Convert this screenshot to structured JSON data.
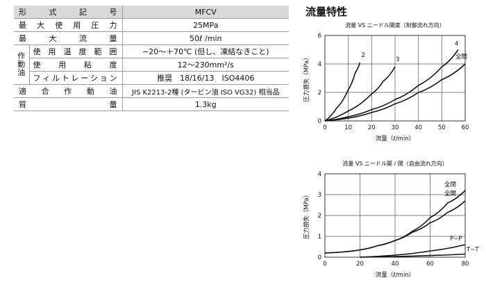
{
  "spec_table": {
    "header": {
      "label": "形式記号",
      "value": "MFCV"
    },
    "rows": [
      {
        "label": "最大使用圧力",
        "value": "25MPa"
      },
      {
        "label": "最大流量",
        "value": "50ℓ /min"
      }
    ],
    "oil_group": {
      "label": "作動油",
      "rows": [
        {
          "label": "使用温度範囲",
          "value": "−20〜＋70℃ (但し、凍結なきこと)"
        },
        {
          "label": "使用粘度",
          "value": "12〜230mm²/s"
        },
        {
          "label": "フィルトレーション",
          "value": "推奨　18/16/13　ISO4406"
        }
      ]
    },
    "rows_after": [
      {
        "label": "適合作動油",
        "value": "JIS K2213-2種 (タービン油 ISO VG32) 相当品"
      },
      {
        "label": "質量",
        "value": "1.3kg"
      }
    ]
  },
  "section_title": "流量特性",
  "chart_data": [
    {
      "type": "line",
      "title": "流量 VS ニードル開度（制御流れ方向）",
      "xlabel": "流量（ℓ/min）",
      "ylabel": "圧力損失（MPa）",
      "xlim": [
        0,
        60
      ],
      "ylim": [
        0,
        6
      ],
      "xticks": [
        0,
        10,
        20,
        30,
        40,
        50,
        60
      ],
      "yticks": [
        0,
        2,
        4,
        6
      ],
      "grid": true,
      "series": [
        {
          "name": "2",
          "x": [
            0,
            5,
            10,
            13,
            15
          ],
          "y": [
            0,
            0.9,
            2.2,
            3.4,
            4.1
          ]
        },
        {
          "name": "3",
          "x": [
            0,
            10,
            20,
            25,
            30
          ],
          "y": [
            0,
            0.7,
            1.9,
            2.8,
            3.8
          ]
        },
        {
          "name": "4",
          "x": [
            0,
            10,
            20,
            30,
            40,
            50,
            57
          ],
          "y": [
            0,
            0.3,
            0.8,
            1.5,
            2.5,
            3.8,
            5.0
          ]
        },
        {
          "name": "全開",
          "x": [
            0,
            10,
            20,
            30,
            40,
            50,
            60
          ],
          "y": [
            0,
            0.2,
            0.6,
            1.2,
            2.0,
            2.9,
            4.0
          ]
        }
      ]
    },
    {
      "type": "line",
      "title": "流量 VS ニードル開 / 閉（自由流れ方向）",
      "xlabel": "流量（ℓ/min）",
      "ylabel": "圧力損失（MPa）",
      "xlim": [
        0,
        80
      ],
      "ylim": [
        0,
        4
      ],
      "xticks": [
        0,
        20,
        40,
        60,
        80
      ],
      "yticks": [
        0,
        1,
        2,
        3,
        4
      ],
      "grid": true,
      "series": [
        {
          "name": "全閉",
          "x": [
            0,
            10,
            20,
            30,
            40,
            50,
            60,
            70,
            80
          ],
          "y": [
            0.2,
            0.25,
            0.35,
            0.55,
            0.8,
            1.25,
            1.9,
            2.6,
            3.2
          ]
        },
        {
          "name": "全開",
          "x": [
            0,
            10,
            20,
            30,
            40,
            50,
            60,
            70,
            80
          ],
          "y": [
            0.2,
            0.25,
            0.35,
            0.55,
            0.8,
            1.2,
            1.65,
            2.15,
            2.7
          ]
        },
        {
          "name": "P−P",
          "x": [
            20,
            40,
            60,
            80
          ],
          "y": [
            0.0,
            0.1,
            0.3,
            0.6
          ]
        },
        {
          "name": "T−T",
          "x": [
            20,
            40,
            60,
            80
          ],
          "y": [
            0.0,
            0.03,
            0.08,
            0.15
          ]
        }
      ]
    }
  ]
}
